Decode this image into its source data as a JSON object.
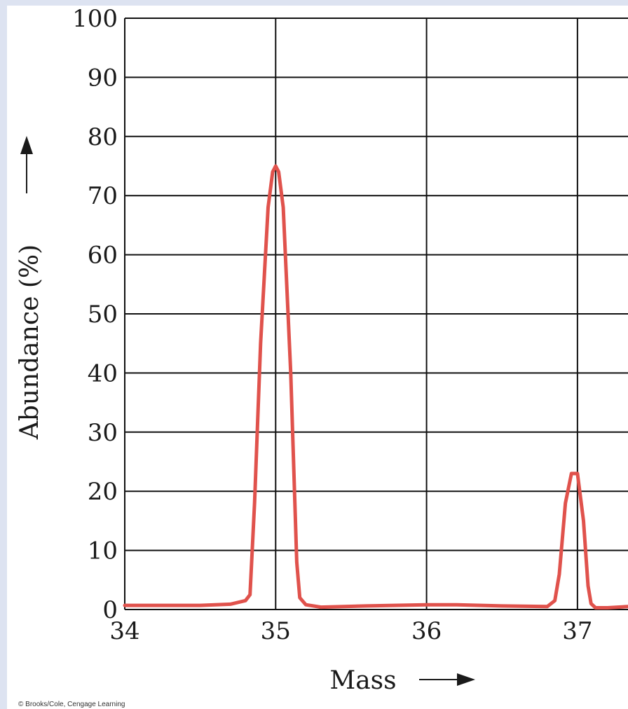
{
  "colors": {
    "background": "#dde3f1",
    "plot_background": "#ffffff",
    "grid": "#111111",
    "line": "#e0524c"
  },
  "credit": "© Brooks/Cole, Cengage Learning",
  "chart_data": {
    "type": "line",
    "title": "",
    "xlabel": "Mass",
    "ylabel": "Abundance (%)",
    "xlim": [
      34,
      37.4
    ],
    "ylim": [
      0,
      100
    ],
    "x_ticks": [
      34,
      35,
      36,
      37
    ],
    "y_ticks": [
      0,
      10,
      20,
      30,
      40,
      50,
      60,
      70,
      80,
      90,
      100
    ],
    "grid": true,
    "series": [
      {
        "x": [
          34.0,
          34.5,
          34.7,
          34.8,
          34.83,
          34.86,
          34.9,
          34.95,
          34.98,
          35.0,
          35.02,
          35.05,
          35.1,
          35.14,
          35.16,
          35.2,
          35.3,
          35.6,
          36.0,
          36.2,
          36.5,
          36.8,
          36.85,
          36.88,
          36.92,
          36.96,
          37.0,
          37.04,
          37.07,
          37.09,
          37.12,
          37.2,
          37.4
        ],
        "y": [
          0.7,
          0.7,
          0.9,
          1.5,
          2.5,
          18,
          45,
          68,
          74,
          75,
          74,
          68,
          40,
          8,
          2,
          0.8,
          0.4,
          0.6,
          0.8,
          0.8,
          0.6,
          0.5,
          1.5,
          6,
          18,
          23,
          23,
          15,
          4,
          1,
          0.3,
          0.3,
          0.6
        ]
      }
    ]
  }
}
